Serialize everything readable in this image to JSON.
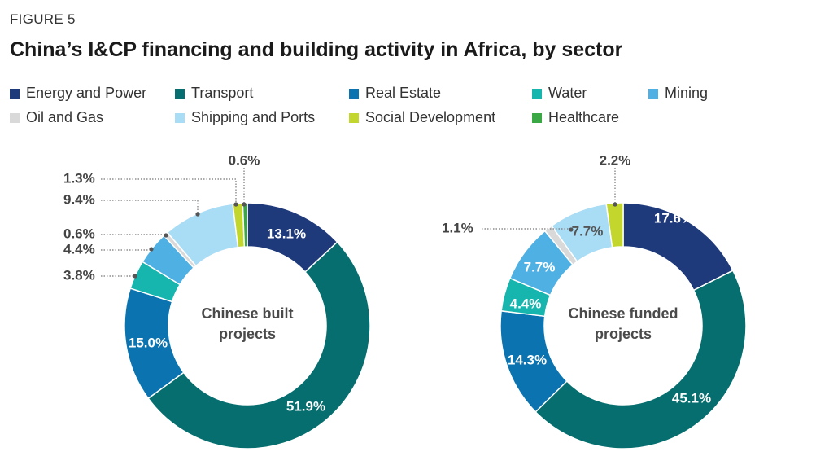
{
  "figure_label": "FIGURE 5",
  "title": "China’s I&CP financing and building activity in Africa, by sector",
  "chart_data": {
    "type": "donut",
    "legend": [
      {
        "name": "Energy and Power",
        "color": "#1f3a7a"
      },
      {
        "name": "Transport",
        "color": "#066e6e"
      },
      {
        "name": "Real Estate",
        "color": "#0b74b0"
      },
      {
        "name": "Water",
        "color": "#16b5ad"
      },
      {
        "name": "Mining",
        "color": "#4fb0e4"
      },
      {
        "name": "Oil and Gas",
        "color": "#d9d9d9"
      },
      {
        "name": "Shipping and Ports",
        "color": "#a9dcf5"
      },
      {
        "name": "Social Development",
        "color": "#c3d62d"
      },
      {
        "name": "Healthcare",
        "color": "#3aa845"
      }
    ],
    "charts": [
      {
        "title": "Chinese built projects",
        "center_lines": [
          "Chinese built",
          "projects"
        ],
        "segments": [
          {
            "sector": "Energy and Power",
            "value": 13.1,
            "label": "13.1%"
          },
          {
            "sector": "Transport",
            "value": 51.9,
            "label": "51.9%"
          },
          {
            "sector": "Real Estate",
            "value": 15.0,
            "label": "15.0%"
          },
          {
            "sector": "Water",
            "value": 3.8,
            "label": "3.8%"
          },
          {
            "sector": "Mining",
            "value": 4.4,
            "label": "4.4%"
          },
          {
            "sector": "Oil and Gas",
            "value": 0.6,
            "label": "0.6%"
          },
          {
            "sector": "Shipping and Ports",
            "value": 9.4,
            "label": "9.4%"
          },
          {
            "sector": "Social Development",
            "value": 1.3,
            "label": "1.3%"
          },
          {
            "sector": "Healthcare",
            "value": 0.6,
            "label": "0.6%"
          }
        ]
      },
      {
        "title": "Chinese funded projects",
        "center_lines": [
          "Chinese funded",
          "projects"
        ],
        "segments": [
          {
            "sector": "Energy and Power",
            "value": 17.6,
            "label": "17.6%"
          },
          {
            "sector": "Transport",
            "value": 45.1,
            "label": "45.1%"
          },
          {
            "sector": "Real Estate",
            "value": 14.3,
            "label": "14.3%"
          },
          {
            "sector": "Water",
            "value": 4.4,
            "label": "4.4%"
          },
          {
            "sector": "Mining",
            "value": 7.7,
            "label": "7.7%"
          },
          {
            "sector": "Oil and Gas",
            "value": 1.1,
            "label": "1.1%"
          },
          {
            "sector": "Shipping and Ports",
            "value": 7.7,
            "label": "7.7%"
          },
          {
            "sector": "Social Development",
            "value": 2.2,
            "label": "2.2%"
          }
        ]
      }
    ]
  }
}
